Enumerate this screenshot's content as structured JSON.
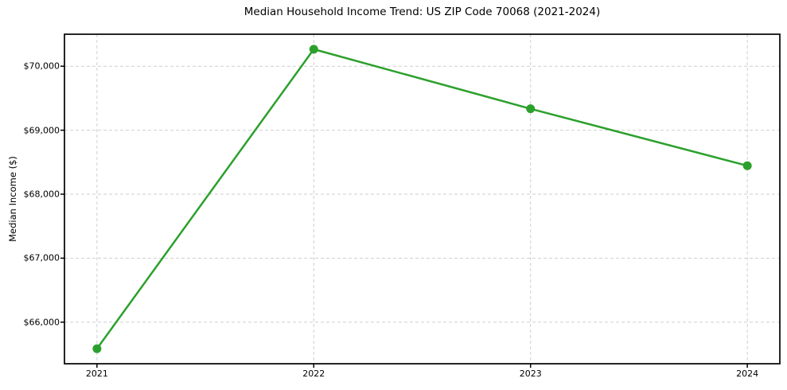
{
  "chart_data": {
    "type": "line",
    "title": "Median Household Income Trend: US ZIP Code 70068 (2021-2024)",
    "xlabel": "",
    "ylabel": "Median Income ($)",
    "x": [
      2021,
      2022,
      2023,
      2024
    ],
    "series": [
      {
        "name": "Median Household Income",
        "values": [
          65585,
          70265,
          69335,
          68445
        ]
      }
    ],
    "x_tick_labels": [
      "2021",
      "2022",
      "2023",
      "2024"
    ],
    "y_ticks": [
      66000,
      67000,
      68000,
      69000,
      70000
    ],
    "y_tick_labels": [
      "$66,000",
      "$67,000",
      "$68,000",
      "$69,000",
      "$70,000"
    ],
    "xlim": [
      2020.85,
      2024.15
    ],
    "ylim": [
      65350,
      70500
    ],
    "grid": true,
    "grid_style": "dashed",
    "legend": "none",
    "colors": {
      "line": "#2ca02c",
      "marker": "#2ca02c",
      "grid": "#cfcfcf",
      "spine": "#000000",
      "background": "#ffffff",
      "text": "#000000"
    }
  }
}
